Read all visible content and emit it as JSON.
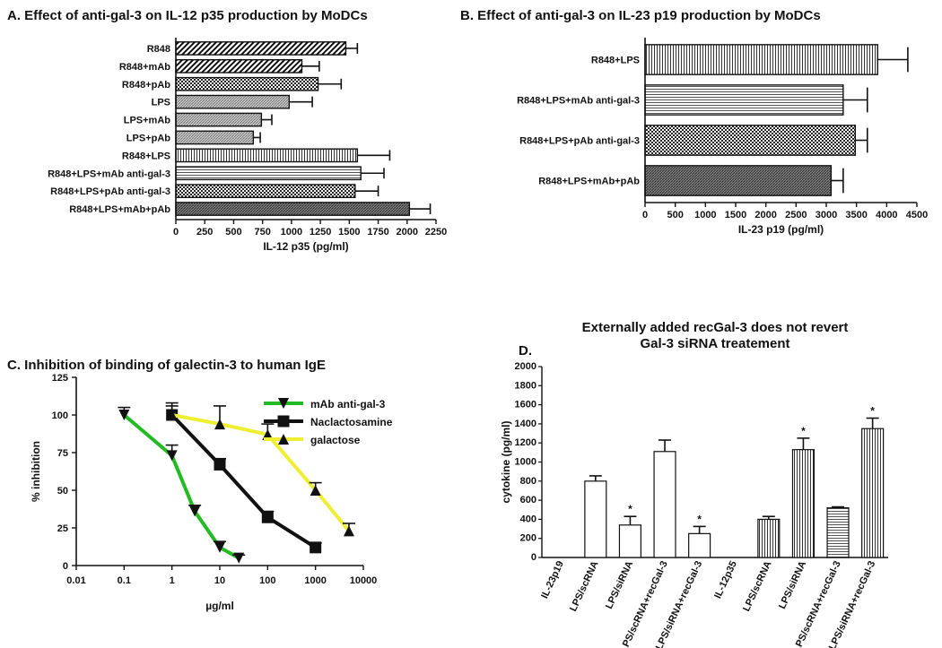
{
  "chart_data": [
    {
      "type": "bar",
      "orientation": "horizontal",
      "title": "A. Effect of anti-gal-3 on IL-12 p35 production by MoDCs",
      "xlabel": "IL-12 p35 (pg/ml)",
      "xlim": [
        0,
        2250
      ],
      "xticks": [
        "0",
        "250",
        "500",
        "750",
        "1000",
        "1250",
        "1500",
        "1750",
        "2000",
        "2250"
      ],
      "categories": [
        "R848",
        "R848+mAb",
        "R848+pAb",
        "LPS",
        "LPS+mAb",
        "LPS+pAb",
        "R848+LPS",
        "R848+LPS+mAb anti-gal-3",
        "R848+LPS+pAb anti-gal-3",
        "R848+LPS+mAb+pAb"
      ],
      "values": [
        1470,
        1090,
        1230,
        980,
        740,
        670,
        1570,
        1600,
        1550,
        2020
      ],
      "errors": [
        100,
        150,
        200,
        200,
        90,
        60,
        280,
        200,
        200,
        180
      ],
      "patterns": [
        "diag",
        "diag",
        "check",
        "hatch",
        "hatch",
        "hatch",
        "vline",
        "hline",
        "check",
        "dark"
      ]
    },
    {
      "type": "bar",
      "orientation": "horizontal",
      "title": "B. Effect of anti-gal-3 on IL-23 p19 production by MoDCs",
      "xlabel": "IL-23 p19 (pg/ml)",
      "xlim": [
        0,
        4500
      ],
      "xticks": [
        "0",
        "500",
        "1000",
        "1500",
        "2000",
        "2500",
        "3000",
        "3500",
        "4000",
        "4500"
      ],
      "categories": [
        "R848+LPS",
        "R848+LPS+mAb anti-gal-3",
        "R848+LPS+pAb anti-gal-3",
        "R848+LPS+mAb+pAb"
      ],
      "values": [
        3850,
        3280,
        3480,
        3080
      ],
      "errors": [
        500,
        400,
        200,
        200
      ],
      "patterns": [
        "vline",
        "hline",
        "check",
        "dark"
      ]
    },
    {
      "type": "line",
      "title": "C. Inhibition of binding of galectin-3 to human IgE",
      "xlabel": "µg/ml",
      "ylabel": "% inhibition",
      "xscale": "log",
      "xlim": [
        0.01,
        10000
      ],
      "ylim": [
        0,
        125
      ],
      "xticks": [
        "0.01",
        "0.1",
        "1",
        "10",
        "100",
        "1000",
        "10000"
      ],
      "yticks": [
        "0",
        "25",
        "50",
        "75",
        "100",
        "125"
      ],
      "legend_position": "top-right",
      "series": [
        {
          "name": "mAb anti-gal-3",
          "color": "#22bb22",
          "marker": "triangle-down",
          "x": [
            0.1,
            1,
            3,
            10,
            25
          ],
          "y": [
            100,
            73,
            36,
            12,
            5
          ],
          "err": [
            5,
            7,
            4,
            4,
            2
          ]
        },
        {
          "name": "Naclactosamine",
          "color": "#111111",
          "marker": "square",
          "x": [
            1,
            10,
            100,
            1000
          ],
          "y": [
            100,
            67,
            32,
            12
          ],
          "err": [
            6,
            4,
            4,
            3
          ]
        },
        {
          "name": "galactose",
          "color": "#eeee33",
          "marker": "triangle-up",
          "x": [
            1,
            10,
            100,
            1000,
            5000
          ],
          "y": [
            100,
            94,
            87,
            50,
            23
          ],
          "err": [
            8,
            12,
            7,
            5,
            5
          ]
        }
      ]
    },
    {
      "type": "bar",
      "title": "Externally added recGal-3 does not revert Gal-3 siRNA treatement",
      "panel_label": "D.",
      "ylabel": "cytokine (pg/ml)",
      "ylim": [
        0,
        2000
      ],
      "yticks": [
        "0",
        "200",
        "400",
        "600",
        "800",
        "1000",
        "1200",
        "1400",
        "1600",
        "1800",
        "2000"
      ],
      "categories": [
        "IL-23p19",
        "LPS/scRNA",
        "LPS/siRNA",
        "LPS/scRNA+recGal-3",
        "LPS/siRNA+recGal-3",
        "IL-12p35",
        "LPS/scRNA",
        "LPS/siRNA",
        "LPS/scRNA+recGal-3",
        "LPS/siRNA+recGal-3"
      ],
      "values": [
        null,
        800,
        340,
        1110,
        250,
        null,
        400,
        1130,
        520,
        1350
      ],
      "errors": [
        0,
        55,
        90,
        120,
        75,
        0,
        30,
        120,
        10,
        110
      ],
      "significant": [
        false,
        false,
        true,
        false,
        true,
        false,
        false,
        true,
        false,
        true
      ],
      "marker_label": "*",
      "patterns": [
        "none",
        "white",
        "white",
        "white",
        "white",
        "none",
        "vline",
        "vline",
        "hline",
        "vline"
      ]
    }
  ]
}
